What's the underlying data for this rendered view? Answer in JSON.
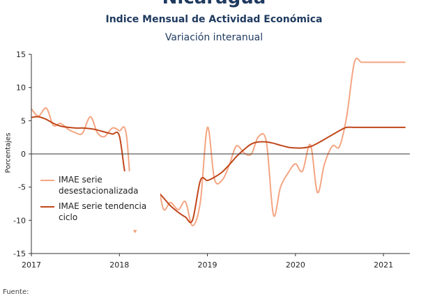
{
  "header": {
    "country": "Nicaragua",
    "subtitle": "Indice Mensual de  Actividad Económica",
    "variation": "Variación interanual"
  },
  "footer": {
    "source_label": "Fuente:"
  },
  "colors": {
    "series1": "#f4a582",
    "series2": "#c0471b",
    "axis": "#333333"
  },
  "chart_data": {
    "type": "line",
    "ylabel": "Porcentajes",
    "xlabel": "",
    "ylim": [
      -15,
      15
    ],
    "yticks": [
      15,
      10,
      5,
      0,
      -5,
      -10,
      -15
    ],
    "xlim": [
      2017.0,
      2021.3
    ],
    "xticks": [
      2017,
      2018,
      2019,
      2020,
      2021
    ],
    "legend_position": "bottom-left",
    "series": [
      {
        "name": "IMAE serie desestacionalizada",
        "x": [
          2017.0,
          2017.08,
          2017.17,
          2017.25,
          2017.33,
          2017.42,
          2017.5,
          2017.58,
          2017.67,
          2017.75,
          2017.83,
          2017.92,
          2018.0,
          2018.08,
          2018.17,
          2018.25,
          2018.33,
          2018.42,
          2018.5,
          2018.58,
          2018.67,
          2018.75,
          2018.83,
          2018.92,
          2019.0,
          2019.08,
          2019.17,
          2019.25,
          2019.33,
          2019.42,
          2019.5,
          2019.58,
          2019.67,
          2019.75,
          2019.83,
          2019.92,
          2020.0,
          2020.08,
          2020.17,
          2020.25,
          2020.33,
          2020.42,
          2020.5,
          2020.58,
          2020.67,
          2020.75,
          2020.83,
          2020.92,
          2021.0,
          2021.08,
          2021.17,
          2021.25
        ],
        "y": [
          6.8,
          5.7,
          6.9,
          4.3,
          4.6,
          3.7,
          3.2,
          3.1,
          5.6,
          3.2,
          2.6,
          3.9,
          3.5,
          2.8,
          -11.6,
          -5.0,
          -3.2,
          -3.5,
          -8.3,
          -7.3,
          -8.4,
          -7.2,
          -10.8,
          -7.2,
          4.0,
          -3.8,
          -3.9,
          -1.6,
          1.2,
          0.1,
          0.0,
          2.6,
          1.8,
          -9.2,
          -5.0,
          -2.8,
          -1.5,
          -2.6,
          1.4,
          -5.8,
          -1.5,
          1.2,
          1.1,
          5.5,
          13.8,
          13.8,
          13.8,
          13.8,
          13.8,
          13.8,
          13.8,
          13.8
        ]
      },
      {
        "name": "IMAE serie tendencia ciclo",
        "x": [
          2017.0,
          2017.08,
          2017.17,
          2017.25,
          2017.33,
          2017.42,
          2017.5,
          2017.58,
          2017.67,
          2017.75,
          2017.83,
          2017.92,
          2018.0,
          2018.08,
          2018.17,
          2018.25,
          2018.33,
          2018.42,
          2018.5,
          2018.58,
          2018.67,
          2018.75,
          2018.83,
          2018.92,
          2019.0,
          2019.08,
          2019.17,
          2019.25,
          2019.33,
          2019.42,
          2019.5,
          2019.58,
          2019.67,
          2019.75,
          2019.83,
          2019.92,
          2020.0,
          2020.08,
          2020.17,
          2020.25,
          2020.33,
          2020.42,
          2020.5,
          2020.58,
          2020.67,
          2020.75,
          2020.83,
          2020.92,
          2021.0,
          2021.08,
          2021.17,
          2021.25
        ],
        "y": [
          5.5,
          5.6,
          5.2,
          4.6,
          4.2,
          4.0,
          3.9,
          3.9,
          3.8,
          3.6,
          3.3,
          3.0,
          2.7,
          -4.0,
          -4.0,
          -4.2,
          -4.7,
          -5.5,
          -6.6,
          -7.8,
          -8.8,
          -9.5,
          -10.0,
          -4.0,
          -4.0,
          -3.5,
          -2.7,
          -1.6,
          -0.4,
          0.7,
          1.5,
          1.8,
          1.8,
          1.6,
          1.3,
          1.0,
          0.9,
          0.9,
          1.1,
          1.6,
          2.2,
          2.9,
          3.5,
          4.0,
          4.0,
          4.0,
          4.0,
          4.0,
          4.0,
          4.0,
          4.0,
          4.0
        ]
      }
    ]
  }
}
